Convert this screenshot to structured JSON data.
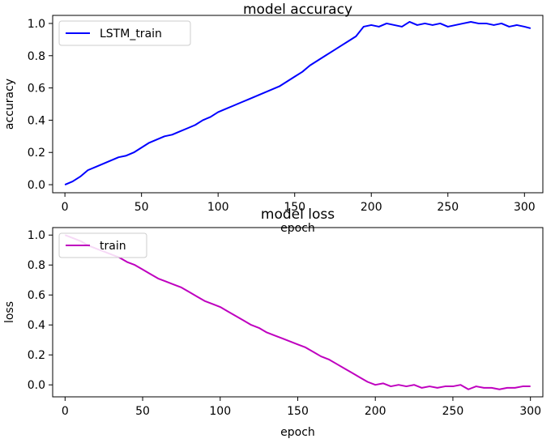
{
  "chart_data": [
    {
      "type": "line",
      "title": "model accuracy",
      "xlabel": "epoch",
      "ylabel": "accuracy",
      "xlim": [
        -8,
        312
      ],
      "ylim": [
        -0.05,
        1.05
      ],
      "xticks": [
        0,
        50,
        100,
        150,
        200,
        250,
        300
      ],
      "yticks": [
        0.0,
        0.2,
        0.4,
        0.6,
        0.8,
        1.0
      ],
      "xtick_labels": [
        "0",
        "50",
        "100",
        "150",
        "200",
        "250",
        "300"
      ],
      "ytick_labels": [
        "0.0",
        "0.2",
        "0.4",
        "0.6",
        "0.8",
        "1.0"
      ],
      "grid": false,
      "legend": "upper-left",
      "series": [
        {
          "name": "LSTM_train",
          "color": "#0000ff",
          "x": [
            0,
            5,
            10,
            15,
            20,
            25,
            30,
            35,
            40,
            45,
            50,
            55,
            60,
            65,
            70,
            75,
            80,
            85,
            90,
            95,
            100,
            105,
            110,
            115,
            120,
            125,
            130,
            135,
            140,
            145,
            150,
            155,
            160,
            165,
            170,
            175,
            180,
            185,
            190,
            195,
            200,
            205,
            210,
            215,
            220,
            225,
            230,
            235,
            240,
            245,
            250,
            255,
            260,
            265,
            270,
            275,
            280,
            285,
            290,
            295,
            300,
            304
          ],
          "y": [
            0.0,
            0.02,
            0.05,
            0.09,
            0.11,
            0.13,
            0.15,
            0.17,
            0.18,
            0.2,
            0.23,
            0.26,
            0.28,
            0.3,
            0.31,
            0.33,
            0.35,
            0.37,
            0.4,
            0.42,
            0.45,
            0.47,
            0.49,
            0.51,
            0.53,
            0.55,
            0.57,
            0.59,
            0.61,
            0.64,
            0.67,
            0.7,
            0.74,
            0.77,
            0.8,
            0.83,
            0.86,
            0.89,
            0.92,
            0.98,
            0.99,
            0.98,
            1.0,
            0.99,
            0.98,
            1.01,
            0.99,
            1.0,
            0.99,
            1.0,
            0.98,
            0.99,
            1.0,
            1.01,
            1.0,
            1.0,
            0.99,
            1.0,
            0.98,
            0.99,
            0.98,
            0.97
          ]
        }
      ]
    },
    {
      "type": "line",
      "title": "model loss",
      "xlabel": "epoch",
      "ylabel": "loss",
      "xlim": [
        -8,
        308
      ],
      "ylim": [
        -0.08,
        1.05
      ],
      "xticks": [
        0,
        50,
        100,
        150,
        200,
        250,
        300
      ],
      "yticks": [
        0.0,
        0.2,
        0.4,
        0.6,
        0.8,
        1.0
      ],
      "xtick_labels": [
        "0",
        "50",
        "100",
        "150",
        "200",
        "250",
        "300"
      ],
      "ytick_labels": [
        "0.0",
        "0.2",
        "0.4",
        "0.6",
        "0.8",
        "1.0"
      ],
      "grid": false,
      "legend": "upper-left",
      "series": [
        {
          "name": "train",
          "color": "#bf00bf",
          "x": [
            0,
            5,
            10,
            15,
            20,
            25,
            30,
            35,
            40,
            45,
            50,
            55,
            60,
            65,
            70,
            75,
            80,
            85,
            90,
            95,
            100,
            105,
            110,
            115,
            120,
            125,
            130,
            135,
            140,
            145,
            150,
            155,
            160,
            165,
            170,
            175,
            180,
            185,
            190,
            195,
            200,
            205,
            210,
            215,
            220,
            225,
            230,
            235,
            240,
            245,
            250,
            255,
            260,
            265,
            270,
            275,
            280,
            285,
            290,
            295,
            300
          ],
          "y": [
            1.0,
            0.98,
            0.96,
            0.93,
            0.91,
            0.89,
            0.87,
            0.85,
            0.82,
            0.8,
            0.77,
            0.74,
            0.71,
            0.69,
            0.67,
            0.65,
            0.62,
            0.59,
            0.56,
            0.54,
            0.52,
            0.49,
            0.46,
            0.43,
            0.4,
            0.38,
            0.35,
            0.33,
            0.31,
            0.29,
            0.27,
            0.25,
            0.22,
            0.19,
            0.17,
            0.14,
            0.11,
            0.08,
            0.05,
            0.02,
            0.0,
            0.01,
            -0.01,
            0.0,
            -0.01,
            0.0,
            -0.02,
            -0.01,
            -0.02,
            -0.01,
            -0.01,
            0.0,
            -0.03,
            -0.01,
            -0.02,
            -0.02,
            -0.03,
            -0.02,
            -0.02,
            -0.01,
            -0.01
          ]
        }
      ]
    }
  ]
}
